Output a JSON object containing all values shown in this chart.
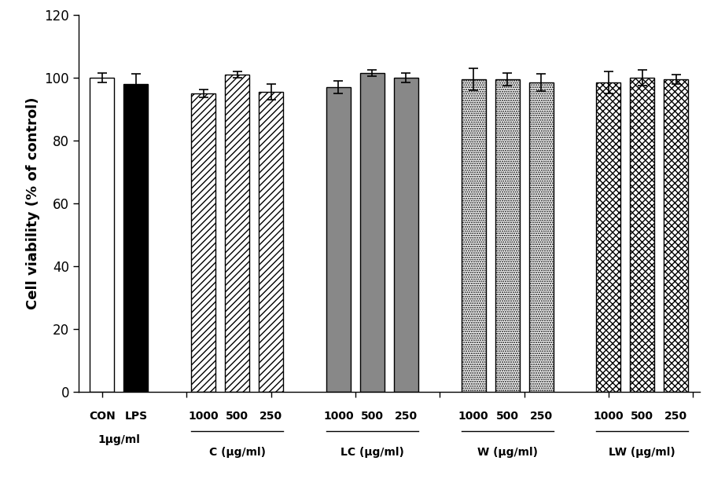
{
  "bars": [
    {
      "label": "CON",
      "value": 100.0,
      "error": 1.5,
      "facecolor": "white",
      "edgecolor": "black",
      "hatch": ""
    },
    {
      "label": "LPS",
      "value": 98.0,
      "error": 3.2,
      "facecolor": "black",
      "edgecolor": "black",
      "hatch": ""
    },
    {
      "label": "C_1000",
      "value": 95.0,
      "error": 1.2,
      "facecolor": "white",
      "edgecolor": "black",
      "hatch": "////"
    },
    {
      "label": "C_500",
      "value": 101.0,
      "error": 1.0,
      "facecolor": "white",
      "edgecolor": "black",
      "hatch": "////"
    },
    {
      "label": "C_250",
      "value": 95.5,
      "error": 2.5,
      "facecolor": "white",
      "edgecolor": "black",
      "hatch": "////"
    },
    {
      "label": "LC_1000",
      "value": 97.0,
      "error": 2.0,
      "facecolor": "#888888",
      "edgecolor": "black",
      "hatch": ""
    },
    {
      "label": "LC_500",
      "value": 101.5,
      "error": 1.0,
      "facecolor": "#888888",
      "edgecolor": "black",
      "hatch": ""
    },
    {
      "label": "LC_250",
      "value": 100.0,
      "error": 1.5,
      "facecolor": "#888888",
      "edgecolor": "black",
      "hatch": ""
    },
    {
      "label": "W_1000",
      "value": 99.5,
      "error": 3.5,
      "facecolor": "white",
      "edgecolor": "black",
      "hatch": "......"
    },
    {
      "label": "W_500",
      "value": 99.5,
      "error": 2.0,
      "facecolor": "white",
      "edgecolor": "black",
      "hatch": "......"
    },
    {
      "label": "W_250",
      "value": 98.5,
      "error": 2.8,
      "facecolor": "white",
      "edgecolor": "black",
      "hatch": "......"
    },
    {
      "label": "LW_1000",
      "value": 98.5,
      "error": 3.5,
      "facecolor": "white",
      "edgecolor": "black",
      "hatch": "xxxx"
    },
    {
      "label": "LW_500",
      "value": 100.0,
      "error": 2.5,
      "facecolor": "white",
      "edgecolor": "black",
      "hatch": "xxxx"
    },
    {
      "label": "LW_250",
      "value": 99.5,
      "error": 1.5,
      "facecolor": "white",
      "edgecolor": "black",
      "hatch": "xxxx"
    }
  ],
  "ind_labels": [
    "CON",
    "LPS",
    "1000",
    "500",
    "250",
    "1000",
    "500",
    "250",
    "1000",
    "500",
    "250",
    "1000",
    "500",
    "250"
  ],
  "ylabel": "Cell viability (% of control)",
  "ylim": [
    0,
    120
  ],
  "yticks": [
    0,
    20,
    40,
    60,
    80,
    100,
    120
  ],
  "bar_width": 0.72,
  "tick_fontsize": 12,
  "label_fontsize": 13,
  "ind_label_fontsize": 10,
  "group_label_fontsize": 10
}
